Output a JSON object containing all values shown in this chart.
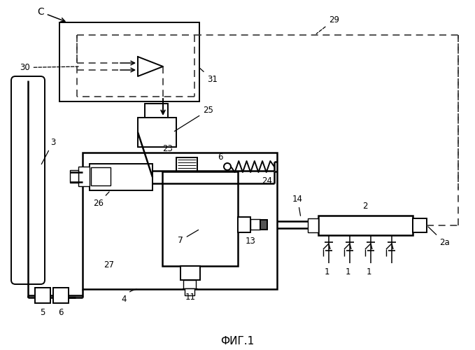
{
  "title": "ФИГ.1",
  "bg_color": "#ffffff",
  "labels": {
    "C": "C",
    "30": "30",
    "31": "31",
    "29": "29",
    "25": "25",
    "26": "26",
    "23": "23",
    "24": "24",
    "7": "7",
    "27": "27",
    "4": "4",
    "3": "3",
    "5": "5",
    "6": "6",
    "11": "11",
    "13": "13",
    "14": "14",
    "2": "2",
    "2a": "2a",
    "1": "1",
    "6s": "6"
  }
}
